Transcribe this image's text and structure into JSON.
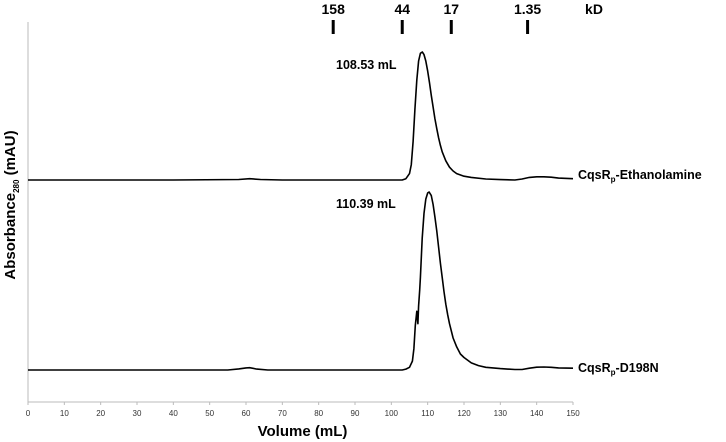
{
  "chart_data": {
    "type": "line",
    "xlabel": "Volume (mL)",
    "ylabel_main": "Absorbance",
    "ylabel_sub": "280",
    "ylabel_unit": "(mAU)",
    "xlim": [
      0,
      150
    ],
    "x_ticks": [
      0,
      10,
      20,
      30,
      40,
      50,
      60,
      70,
      80,
      90,
      100,
      110,
      120,
      130,
      140,
      150
    ],
    "grid": false,
    "mw_unit_label": "kD",
    "mw_markers": [
      {
        "label": "158",
        "volume": 84
      },
      {
        "label": "44",
        "volume": 103
      },
      {
        "label": "17",
        "volume": 116.5
      },
      {
        "label": "1.35",
        "volume": 137.5
      }
    ],
    "series": [
      {
        "name_main": "CqsR",
        "name_sub": "p",
        "name_rest": "-Ethanolamine",
        "peak_label": "108.53 mL",
        "peak_volume": 108.53,
        "points": [
          [
            0,
            0
          ],
          [
            20,
            0
          ],
          [
            40,
            0
          ],
          [
            58,
            0.004
          ],
          [
            61,
            0.01
          ],
          [
            64,
            0.004
          ],
          [
            70,
            0
          ],
          [
            90,
            0
          ],
          [
            103,
            0
          ],
          [
            104,
            0.01
          ],
          [
            105,
            0.05
          ],
          [
            105.5,
            0.12
          ],
          [
            106,
            0.3
          ],
          [
            106.5,
            0.55
          ],
          [
            107,
            0.78
          ],
          [
            107.5,
            0.93
          ],
          [
            108,
            0.99
          ],
          [
            108.53,
            1.0
          ],
          [
            109,
            0.98
          ],
          [
            109.5,
            0.93
          ],
          [
            110,
            0.85
          ],
          [
            110.5,
            0.76
          ],
          [
            111,
            0.66
          ],
          [
            111.5,
            0.57
          ],
          [
            112,
            0.48
          ],
          [
            112.5,
            0.4
          ],
          [
            113,
            0.33
          ],
          [
            113.5,
            0.27
          ],
          [
            114,
            0.22
          ],
          [
            115,
            0.15
          ],
          [
            116,
            0.1
          ],
          [
            117,
            0.07
          ],
          [
            118,
            0.05
          ],
          [
            120,
            0.03
          ],
          [
            122,
            0.02
          ],
          [
            126,
            0.008
          ],
          [
            130,
            0.003
          ],
          [
            134,
            0
          ],
          [
            136,
            0.008
          ],
          [
            138,
            0.02
          ],
          [
            140,
            0.025
          ],
          [
            142,
            0.025
          ],
          [
            144,
            0.022
          ],
          [
            146,
            0.015
          ],
          [
            150,
            0.01
          ]
        ]
      },
      {
        "name_main": "CqsR",
        "name_sub": "p",
        "name_rest": "-D198N",
        "peak_label": "110.39 mL",
        "peak_volume": 110.39,
        "points": [
          [
            0,
            0
          ],
          [
            20,
            0
          ],
          [
            40,
            0
          ],
          [
            55,
            0
          ],
          [
            58,
            0.006
          ],
          [
            60,
            0.012
          ],
          [
            61,
            0.013
          ],
          [
            63,
            0.005
          ],
          [
            66,
            0
          ],
          [
            90,
            0
          ],
          [
            103,
            0
          ],
          [
            104,
            0.005
          ],
          [
            105,
            0.015
          ],
          [
            105.8,
            0.05
          ],
          [
            106.2,
            0.12
          ],
          [
            106.6,
            0.25
          ],
          [
            107,
            0.33
          ],
          [
            107.3,
            0.26
          ],
          [
            107.5,
            0.36
          ],
          [
            107.8,
            0.45
          ],
          [
            108,
            0.52
          ],
          [
            108.5,
            0.74
          ],
          [
            109,
            0.88
          ],
          [
            109.5,
            0.96
          ],
          [
            110,
            0.995
          ],
          [
            110.39,
            1.0
          ],
          [
            111,
            0.98
          ],
          [
            111.5,
            0.93
          ],
          [
            112,
            0.86
          ],
          [
            112.5,
            0.78
          ],
          [
            113,
            0.69
          ],
          [
            113.5,
            0.6
          ],
          [
            114,
            0.52
          ],
          [
            114.5,
            0.44
          ],
          [
            115,
            0.37
          ],
          [
            115.5,
            0.31
          ],
          [
            116,
            0.26
          ],
          [
            117,
            0.18
          ],
          [
            118,
            0.13
          ],
          [
            119,
            0.09
          ],
          [
            120,
            0.07
          ],
          [
            122,
            0.04
          ],
          [
            124,
            0.025
          ],
          [
            126,
            0.015
          ],
          [
            130,
            0.008
          ],
          [
            134,
            0.003
          ],
          [
            136,
            0.003
          ],
          [
            138,
            0.01
          ],
          [
            140,
            0.016
          ],
          [
            142,
            0.017
          ],
          [
            144,
            0.015
          ],
          [
            146,
            0.012
          ],
          [
            150,
            0.01
          ]
        ]
      }
    ]
  }
}
